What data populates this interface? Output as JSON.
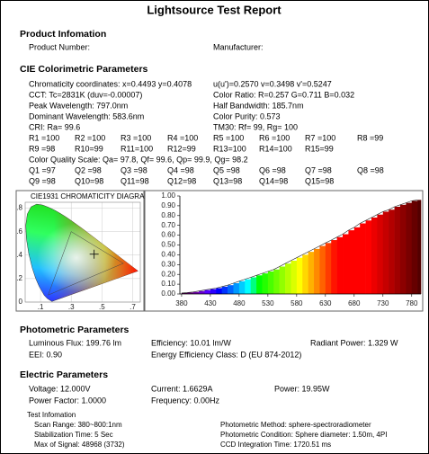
{
  "header": {
    "title": "Lightsource Test Report"
  },
  "product": {
    "heading": "Product Infomation",
    "fields": [
      "Product Number:",
      "Manufacturer:"
    ]
  },
  "cie": {
    "heading": "CIE Colorimetric Parameters",
    "lines": [
      [
        "Chromaticity coordinates: x=0.4493 y=0.4078",
        "u(u')=0.2570 v=0.3498 v'=0.5247"
      ],
      [
        "CCT: Tc=2831K (duv=-0.00007)",
        "Color Ratio: R=0.257 G=0.711 B=0.032"
      ],
      [
        "Peak Wavelength: 797.0nm",
        "Half Bandwidth: 185.7nm"
      ],
      [
        "Dominant Wavelength: 583.6nm",
        "Color Purity: 0.573"
      ],
      [
        "CRI: Ra= 99.6",
        "TM30: Rf= 99, Rg= 100"
      ]
    ],
    "r_values": [
      [
        "R1 =100",
        "R2 =100",
        "R3 =100",
        "R4 =100",
        "R5 =100",
        "R6 =100",
        "R7 =100",
        "R8 =99"
      ],
      [
        "R9 =98",
        "R10=99",
        "R11=100",
        "R12=99",
        "R13=100",
        "R14=100",
        "R15=99"
      ]
    ],
    "cqs": "Color Quality Scale: Qa= 97.8, Qf= 99.6, Qp= 99.9, Qg= 98.2",
    "q_values": [
      [
        "Q1 =97",
        "Q2 =98",
        "Q3 =98",
        "Q4 =98",
        "Q5 =98",
        "Q6 =98",
        "Q7 =98",
        "Q8 =98"
      ],
      [
        "Q9 =98",
        "Q10=98",
        "Q11=98",
        "Q12=98",
        "Q13=98",
        "Q14=98",
        "Q15=98"
      ]
    ]
  },
  "chart_data": [
    {
      "type": "chromaticity",
      "title": "CIE1931 CHROMATICITY DIAGRAM",
      "point": {
        "x": 0.4493,
        "y": 0.4078
      },
      "xlim": [
        0,
        0.75
      ],
      "ylim": [
        0,
        0.85
      ],
      "xticks": [
        {
          "value": 0.1,
          "label": ".1"
        },
        {
          "value": 0.3,
          "label": ".3"
        },
        {
          "value": 0.5,
          "label": ".5"
        },
        {
          "value": 0.7,
          "label": ".7"
        }
      ],
      "yticks": [
        {
          "value": 0,
          "label": "0"
        },
        {
          "value": 0.2,
          "label": ".2"
        },
        {
          "value": 0.4,
          "label": ".4"
        },
        {
          "value": 0.6,
          "label": ".6"
        },
        {
          "value": 0.8,
          "label": ".8"
        }
      ]
    },
    {
      "type": "spectrum",
      "x": [
        380,
        390,
        400,
        410,
        420,
        430,
        440,
        450,
        460,
        470,
        480,
        490,
        500,
        510,
        520,
        530,
        540,
        550,
        560,
        570,
        580,
        590,
        600,
        610,
        620,
        630,
        640,
        650,
        660,
        670,
        680,
        690,
        700,
        710,
        720,
        730,
        740,
        750,
        760,
        770,
        780,
        790
      ],
      "values": [
        0.01,
        0.015,
        0.02,
        0.03,
        0.04,
        0.05,
        0.06,
        0.075,
        0.09,
        0.11,
        0.13,
        0.15,
        0.17,
        0.19,
        0.21,
        0.23,
        0.25,
        0.28,
        0.31,
        0.34,
        0.37,
        0.4,
        0.43,
        0.46,
        0.49,
        0.52,
        0.55,
        0.58,
        0.61,
        0.65,
        0.68,
        0.72,
        0.75,
        0.78,
        0.81,
        0.84,
        0.86,
        0.89,
        0.91,
        0.93,
        0.95,
        0.96
      ],
      "xlim": [
        377,
        796
      ],
      "ylim": [
        0,
        1
      ],
      "xticks": [
        380,
        430,
        480,
        530,
        580,
        630,
        680,
        730,
        780
      ],
      "yticks": [
        {
          "value": 0,
          "label": "0.00"
        },
        {
          "value": 0.1,
          "label": "0.10"
        },
        {
          "value": 0.2,
          "label": "0.20"
        },
        {
          "value": 0.3,
          "label": "0.30"
        },
        {
          "value": 0.4,
          "label": "0.40"
        },
        {
          "value": 0.5,
          "label": "0.50"
        },
        {
          "value": 0.6,
          "label": "0.60"
        },
        {
          "value": 0.7,
          "label": "0.70"
        },
        {
          "value": 0.8,
          "label": "0.80"
        },
        {
          "value": 0.9,
          "label": "0.90"
        },
        {
          "value": 1,
          "label": "1.00"
        }
      ]
    }
  ],
  "photometric": {
    "heading": "Photometric Parameters",
    "rows": [
      [
        "Luminous Flux: 199.76 lm",
        "Efficiency: 10.01 lm/W",
        "Radiant Power: 1.329 W"
      ],
      [
        "EEI: 0.90",
        "Energy Efficiency Class: D (EU 874-2012)"
      ]
    ]
  },
  "electric": {
    "heading": "Electric Parameters",
    "rows": [
      [
        "Voltage: 12.000V",
        "Current: 1.6629A",
        "Power: 19.95W"
      ],
      [
        "Power Factor: 1.0000",
        "Frequency: 0.00Hz"
      ]
    ]
  },
  "test": {
    "heading": "Test Infomation",
    "rows": [
      [
        "Scan Range: 380~800:1nm",
        "Photometric Method: sphere-spectroradiometer"
      ],
      [
        "Stabilization Time: 5 Sec",
        "Photometric Condition: Sphere diameter: 1.50m, 4PI"
      ],
      [
        "Max of Signal: 48968 (3732)",
        "CCD Integration Time: 1720.51 ms"
      ]
    ]
  }
}
